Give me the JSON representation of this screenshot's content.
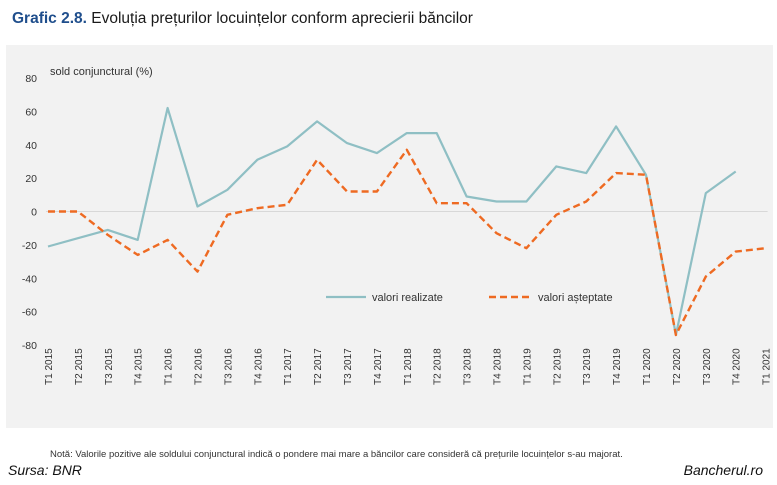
{
  "header": {
    "label": "Grafic 2.8.",
    "text": "Evoluția prețurilor locuințelor conform aprecierii băncilor"
  },
  "chart_data": {
    "type": "line",
    "ylabel": "sold conjunctural (%)",
    "ylim": [
      -80,
      80
    ],
    "yticks": [
      80,
      60,
      40,
      20,
      0,
      -20,
      -40,
      -60,
      -80
    ],
    "categories": [
      "T1 2015",
      "T2 2015",
      "T3 2015",
      "T4 2015",
      "T1 2016",
      "T2 2016",
      "T3 2016",
      "T4 2016",
      "T1 2017",
      "T2 2017",
      "T3 2017",
      "T4 2017",
      "T1 2018",
      "T2 2018",
      "T3 2018",
      "T4 2018",
      "T1 2019",
      "T2 2019",
      "T3 2019",
      "T4 2019",
      "T1 2020",
      "T2 2020",
      "T3 2020",
      "T4 2020",
      "T1 2021"
    ],
    "series": [
      {
        "name": "valori realizate",
        "color": "#8fbfc4",
        "style": "solid",
        "values": [
          -21,
          -16,
          -11,
          -17,
          62,
          3,
          13,
          31,
          39,
          54,
          41,
          35,
          47,
          47,
          9,
          6,
          6,
          27,
          23,
          51,
          22,
          -74,
          11,
          24,
          null
        ]
      },
      {
        "name": "valori așteptate",
        "color": "#ee6a22",
        "style": "dashed",
        "values": [
          0,
          0,
          -14,
          -26,
          -17,
          -36,
          -2,
          2,
          4,
          31,
          12,
          12,
          37,
          5,
          5,
          -13,
          -22,
          -2,
          6,
          23,
          22,
          -74,
          -39,
          -24,
          -22
        ]
      }
    ],
    "legend_position": "center",
    "grid": false
  },
  "note": "Notă: Valorile pozitive ale soldului conjunctural indică o pondere mai mare a băncilor care consideră că prețurile locuințelor s-au majorat.",
  "footer": {
    "source": "Sursa: BNR",
    "site": "Bancherul.ro"
  }
}
